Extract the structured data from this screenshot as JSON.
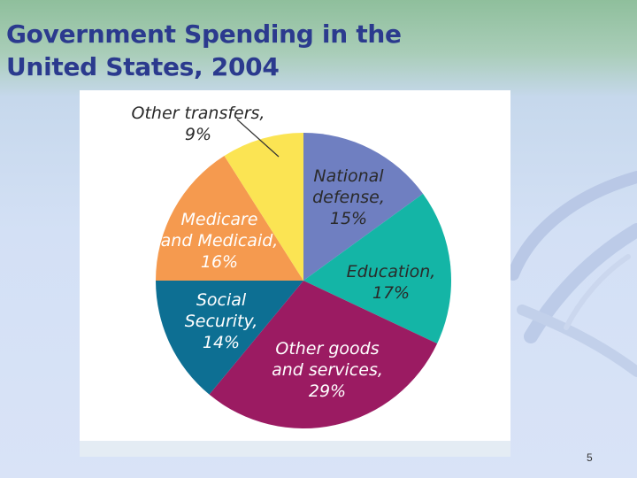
{
  "slide": {
    "title_line1": "Government Spending in the",
    "title_line2": "United States, 2004",
    "page_number": "5"
  },
  "chart_data": {
    "type": "pie",
    "title": "Government Spending in the United States, 2004",
    "slices": [
      {
        "label_lines": [
          "National",
          "defense,",
          "15%"
        ],
        "value": 15,
        "color": "#6f7fc1"
      },
      {
        "label_lines": [
          "Education,",
          "17%"
        ],
        "value": 17,
        "color": "#14b5a6"
      },
      {
        "label_lines": [
          "Other goods",
          "and services,",
          "29%"
        ],
        "value": 29,
        "color": "#9b1b62"
      },
      {
        "label_lines": [
          "Social",
          "Security,",
          "14%"
        ],
        "value": 14,
        "color": "#0d6f93"
      },
      {
        "label_lines": [
          "Medicare",
          "and Medicaid,",
          "16%"
        ],
        "value": 16,
        "color": "#f59a4f"
      },
      {
        "label_lines": [
          "Other transfers,",
          "9%"
        ],
        "value": 9,
        "color": "#fbe453"
      }
    ]
  }
}
